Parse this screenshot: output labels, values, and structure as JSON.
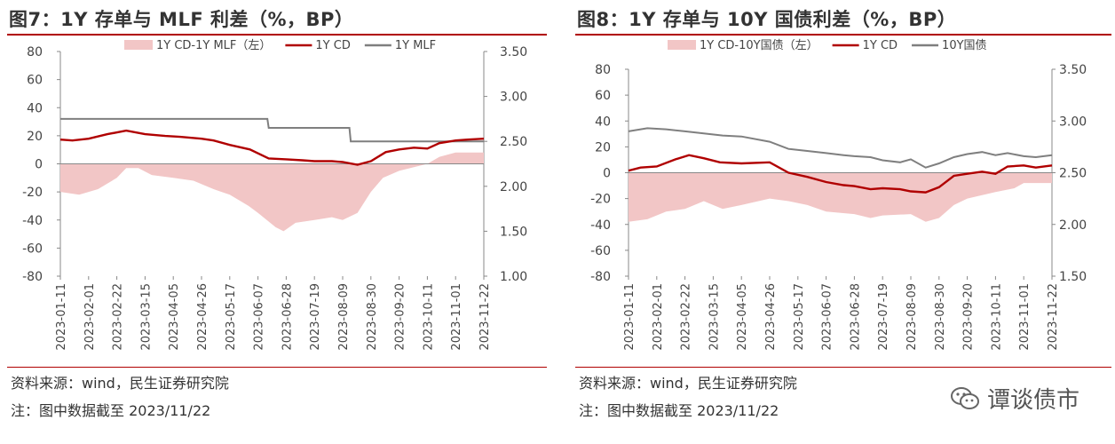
{
  "watermark": "谭谈债市",
  "charts": [
    {
      "title": "图7：1Y 存单与 MLF 利差（%，BP）",
      "source": "资料来源：wind，民生证券研究院",
      "note": "注：图中数据截至 2023/11/22",
      "chart_data": {
        "type": "line",
        "left_axis": {
          "min": -80,
          "max": 80,
          "ticks": [
            -80,
            -60,
            -40,
            -20,
            0,
            20,
            40,
            60,
            80
          ]
        },
        "right_axis": {
          "min": 1.0,
          "max": 3.5,
          "ticks": [
            "1.00",
            "1.50",
            "2.00",
            "2.50",
            "3.00",
            "3.50"
          ]
        },
        "x_range": [
          "2023-01-11",
          "2023-11-22"
        ],
        "x_ticks": [
          "2023-01-11",
          "2023-02-01",
          "2023-02-22",
          "2023-03-15",
          "2023-04-05",
          "2023-04-26",
          "2023-05-17",
          "2023-06-07",
          "2023-06-28",
          "2023-07-19",
          "2023-08-09",
          "2023-08-30",
          "2023-09-20",
          "2023-10-11",
          "2023-11-01",
          "2023-11-22"
        ],
        "legend": [
          "1Y CD-1Y MLF（左）",
          "1Y CD",
          "1Y MLF"
        ],
        "colors": {
          "spread": "#f2c6c6",
          "cd": "#b00000",
          "other": "#7f7f7f"
        },
        "spread_axis": "left",
        "cd_axis": "right",
        "other_axis": "right",
        "spread": [
          [
            "2023-01-11",
            -20
          ],
          [
            "2023-01-25",
            -22
          ],
          [
            "2023-02-08",
            -18
          ],
          [
            "2023-02-22",
            -10
          ],
          [
            "2023-03-01",
            -3
          ],
          [
            "2023-03-10",
            -3
          ],
          [
            "2023-03-20",
            -8
          ],
          [
            "2023-04-05",
            -10
          ],
          [
            "2023-04-20",
            -12
          ],
          [
            "2023-05-05",
            -18
          ],
          [
            "2023-05-17",
            -22
          ],
          [
            "2023-05-31",
            -30
          ],
          [
            "2023-06-07",
            -35
          ],
          [
            "2023-06-20",
            -45
          ],
          [
            "2023-06-26",
            -48
          ],
          [
            "2023-07-05",
            -42
          ],
          [
            "2023-07-19",
            -40
          ],
          [
            "2023-08-01",
            -38
          ],
          [
            "2023-08-09",
            -40
          ],
          [
            "2023-08-20",
            -35
          ],
          [
            "2023-08-30",
            -20
          ],
          [
            "2023-09-08",
            -10
          ],
          [
            "2023-09-20",
            -5
          ],
          [
            "2023-10-11",
            0
          ],
          [
            "2023-10-20",
            5
          ],
          [
            "2023-11-01",
            8
          ],
          [
            "2023-11-22",
            8
          ]
        ],
        "cd": [
          [
            "2023-01-11",
            2.52
          ],
          [
            "2023-01-20",
            2.51
          ],
          [
            "2023-02-01",
            2.53
          ],
          [
            "2023-02-15",
            2.58
          ],
          [
            "2023-03-01",
            2.62
          ],
          [
            "2023-03-15",
            2.58
          ],
          [
            "2023-03-30",
            2.56
          ],
          [
            "2023-04-10",
            2.55
          ],
          [
            "2023-04-26",
            2.53
          ],
          [
            "2023-05-05",
            2.51
          ],
          [
            "2023-05-17",
            2.46
          ],
          [
            "2023-06-01",
            2.41
          ],
          [
            "2023-06-15",
            2.31
          ],
          [
            "2023-06-28",
            2.3
          ],
          [
            "2023-07-10",
            2.29
          ],
          [
            "2023-07-19",
            2.28
          ],
          [
            "2023-08-01",
            2.28
          ],
          [
            "2023-08-09",
            2.27
          ],
          [
            "2023-08-20",
            2.24
          ],
          [
            "2023-08-30",
            2.28
          ],
          [
            "2023-09-10",
            2.38
          ],
          [
            "2023-09-20",
            2.41
          ],
          [
            "2023-10-01",
            2.43
          ],
          [
            "2023-10-11",
            2.42
          ],
          [
            "2023-10-20",
            2.48
          ],
          [
            "2023-11-01",
            2.51
          ],
          [
            "2023-11-10",
            2.52
          ],
          [
            "2023-11-22",
            2.53
          ]
        ],
        "other": [
          [
            "2023-01-11",
            2.75
          ],
          [
            "2023-06-14",
            2.75
          ],
          [
            "2023-06-15",
            2.65
          ],
          [
            "2023-08-14",
            2.65
          ],
          [
            "2023-08-15",
            2.5
          ],
          [
            "2023-11-22",
            2.5
          ]
        ]
      }
    },
    {
      "title": "图8：1Y 存单与 10Y 国债利差（%，BP）",
      "source": "资料来源：wind，民生证券研究院",
      "note": "注：图中数据截至 2023/11/22",
      "chart_data": {
        "type": "line",
        "left_axis": {
          "min": -80,
          "max": 80,
          "ticks": [
            -80,
            -60,
            -40,
            -20,
            0,
            20,
            40,
            60,
            80
          ]
        },
        "right_axis": {
          "min": 1.5,
          "max": 3.5,
          "ticks": [
            "1.50",
            "2.00",
            "2.50",
            "3.00",
            "3.50"
          ]
        },
        "x_range": [
          "2023-01-11",
          "2023-11-22"
        ],
        "x_ticks": [
          "2023-01-11",
          "2023-02-01",
          "2023-02-22",
          "2023-03-15",
          "2023-04-05",
          "2023-04-26",
          "2023-05-17",
          "2023-06-07",
          "2023-06-28",
          "2023-07-19",
          "2023-08-09",
          "2023-08-30",
          "2023-09-20",
          "2023-10-11",
          "2023-11-01",
          "2023-11-22"
        ],
        "legend": [
          "1Y CD-10Y国债（左）",
          "1Y CD",
          "10Y国债"
        ],
        "colors": {
          "spread": "#f2c6c6",
          "cd": "#b00000",
          "other": "#7f7f7f"
        },
        "spread_axis": "left",
        "cd_axis": "right",
        "other_axis": "right",
        "spread": [
          [
            "2023-01-11",
            -38
          ],
          [
            "2023-01-25",
            -36
          ],
          [
            "2023-02-08",
            -30
          ],
          [
            "2023-02-22",
            -28
          ],
          [
            "2023-03-08",
            -22
          ],
          [
            "2023-03-22",
            -28
          ],
          [
            "2023-04-05",
            -25
          ],
          [
            "2023-04-26",
            -20
          ],
          [
            "2023-05-10",
            -22
          ],
          [
            "2023-05-24",
            -25
          ],
          [
            "2023-06-07",
            -30
          ],
          [
            "2023-06-28",
            -32
          ],
          [
            "2023-07-10",
            -35
          ],
          [
            "2023-07-19",
            -33
          ],
          [
            "2023-08-09",
            -32
          ],
          [
            "2023-08-20",
            -38
          ],
          [
            "2023-08-30",
            -35
          ],
          [
            "2023-09-10",
            -25
          ],
          [
            "2023-09-20",
            -20
          ],
          [
            "2023-10-11",
            -15
          ],
          [
            "2023-10-25",
            -12
          ],
          [
            "2023-11-01",
            -8
          ],
          [
            "2023-11-22",
            -8
          ]
        ],
        "cd": [
          [
            "2023-01-11",
            2.52
          ],
          [
            "2023-01-20",
            2.55
          ],
          [
            "2023-02-01",
            2.56
          ],
          [
            "2023-02-15",
            2.63
          ],
          [
            "2023-02-25",
            2.67
          ],
          [
            "2023-03-08",
            2.64
          ],
          [
            "2023-03-20",
            2.6
          ],
          [
            "2023-04-05",
            2.59
          ],
          [
            "2023-04-26",
            2.6
          ],
          [
            "2023-05-10",
            2.5
          ],
          [
            "2023-05-24",
            2.46
          ],
          [
            "2023-06-07",
            2.41
          ],
          [
            "2023-06-20",
            2.38
          ],
          [
            "2023-06-28",
            2.37
          ],
          [
            "2023-07-10",
            2.34
          ],
          [
            "2023-07-19",
            2.35
          ],
          [
            "2023-08-01",
            2.34
          ],
          [
            "2023-08-09",
            2.32
          ],
          [
            "2023-08-20",
            2.31
          ],
          [
            "2023-08-30",
            2.36
          ],
          [
            "2023-09-10",
            2.47
          ],
          [
            "2023-09-20",
            2.49
          ],
          [
            "2023-10-01",
            2.51
          ],
          [
            "2023-10-11",
            2.49
          ],
          [
            "2023-10-20",
            2.56
          ],
          [
            "2023-11-01",
            2.57
          ],
          [
            "2023-11-10",
            2.55
          ],
          [
            "2023-11-22",
            2.57
          ]
        ],
        "other": [
          [
            "2023-01-11",
            2.9
          ],
          [
            "2023-01-25",
            2.93
          ],
          [
            "2023-02-08",
            2.92
          ],
          [
            "2023-02-22",
            2.9
          ],
          [
            "2023-03-08",
            2.88
          ],
          [
            "2023-03-22",
            2.86
          ],
          [
            "2023-04-05",
            2.85
          ],
          [
            "2023-04-26",
            2.8
          ],
          [
            "2023-05-10",
            2.73
          ],
          [
            "2023-05-24",
            2.71
          ],
          [
            "2023-06-07",
            2.69
          ],
          [
            "2023-06-20",
            2.67
          ],
          [
            "2023-06-28",
            2.66
          ],
          [
            "2023-07-10",
            2.65
          ],
          [
            "2023-07-19",
            2.62
          ],
          [
            "2023-08-01",
            2.6
          ],
          [
            "2023-08-09",
            2.63
          ],
          [
            "2023-08-20",
            2.55
          ],
          [
            "2023-08-30",
            2.59
          ],
          [
            "2023-09-10",
            2.65
          ],
          [
            "2023-09-20",
            2.68
          ],
          [
            "2023-10-01",
            2.7
          ],
          [
            "2023-10-11",
            2.67
          ],
          [
            "2023-10-20",
            2.69
          ],
          [
            "2023-11-01",
            2.66
          ],
          [
            "2023-11-10",
            2.65
          ],
          [
            "2023-11-22",
            2.67
          ]
        ]
      }
    }
  ]
}
